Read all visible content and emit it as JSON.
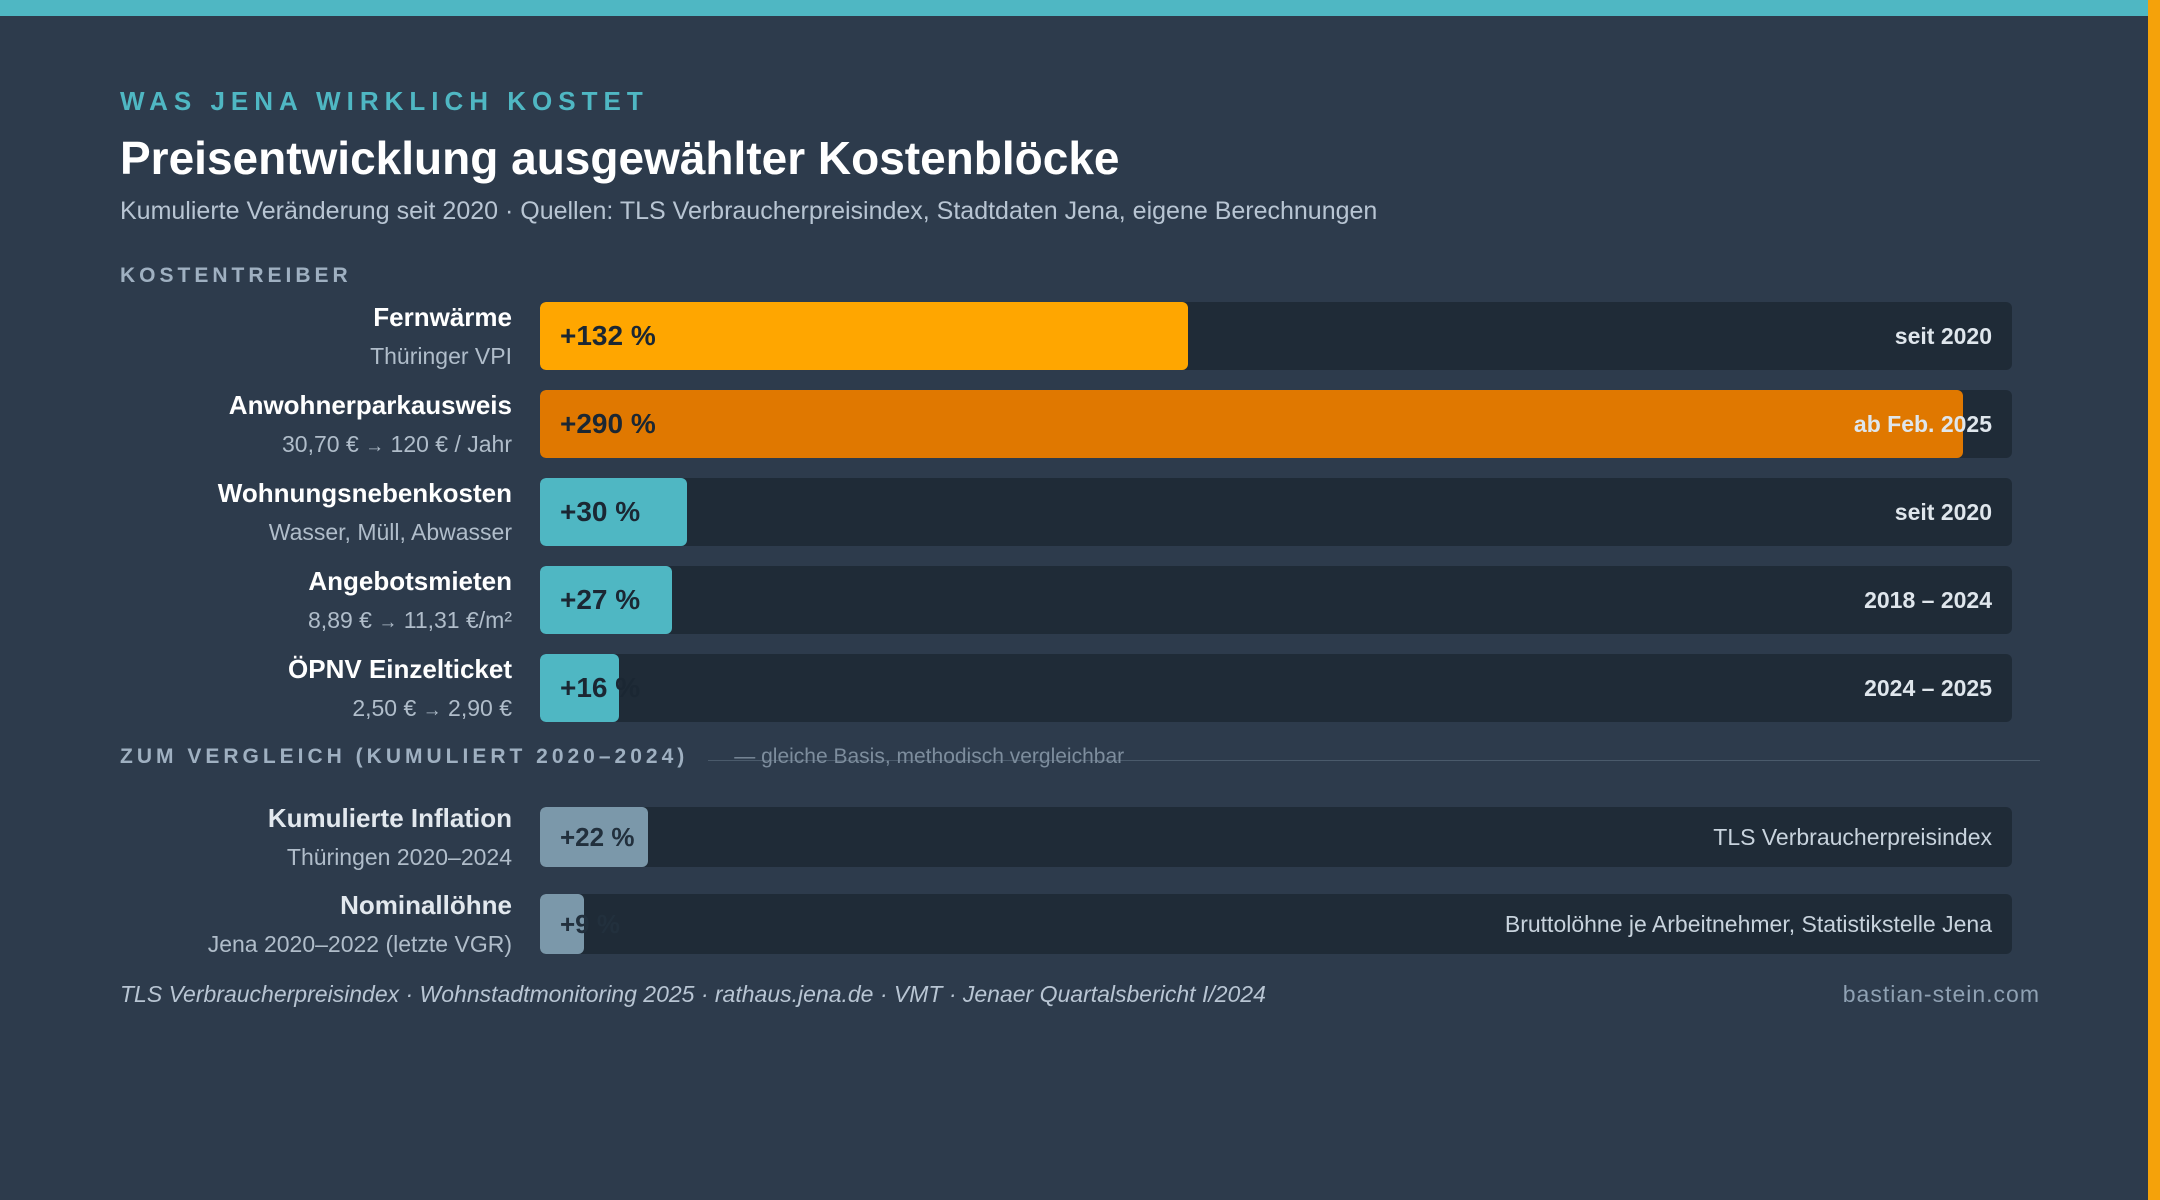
{
  "header": {
    "eyebrow": "WAS JENA WIRKLICH KOSTET",
    "title": "Preisentwicklung ausgewählter Kostenblöcke",
    "subtitle": "Kumulierte Veränderung seit 2020 · Quellen: TLS Verbraucherpreisindex, Stadtdaten Jena, eigene Berechnungen"
  },
  "colors": {
    "accent_teal": "#4fb7c3",
    "accent_orange": "#f5a20a",
    "fernwaerme": "#ffa600",
    "parkausweis": "#e07800",
    "teal_bar": "#4fb7c3",
    "comparison_bar": "#7b98aa"
  },
  "chart_data": {
    "type": "bar",
    "orientation": "horizontal",
    "title": "Preisentwicklung ausgewählter Kostenblöcke",
    "unit": "%",
    "xlim": [
      0,
      300
    ],
    "sections": [
      {
        "label": "KOSTENTREIBER",
        "bars": [
          {
            "name": "Fernwärme",
            "sub": "Thüringer VPI",
            "value": 132,
            "value_label": "+132 %",
            "note": "seit 2020"
          },
          {
            "name": "Anwohnerparkausweis",
            "sub": "30,70 € → 120 € / Jahr",
            "value": 290,
            "value_label": "+290 %",
            "note": "ab Feb. 2025"
          },
          {
            "name": "Wohnungsnebenkosten",
            "sub": "Wasser, Müll, Abwasser",
            "value": 30,
            "value_label": "+30 %",
            "note": "seit 2020"
          },
          {
            "name": "Angebotsmieten",
            "sub": "8,89 € → 11,31 €/m²",
            "value": 27,
            "value_label": "+27 %",
            "note": "2018 – 2024"
          },
          {
            "name": "ÖPNV Einzelticket",
            "sub": "2,50 € → 2,90 €",
            "value": 16,
            "value_label": "+16 %",
            "note": "2024 – 2025"
          }
        ]
      },
      {
        "label": "ZUM VERGLEICH (KUMULIERT 2020–2024)",
        "note": "— gleiche Basis, methodisch vergleichbar",
        "bars": [
          {
            "name": "Kumulierte Inflation",
            "sub": "Thüringen 2020–2024",
            "value": 22,
            "value_label": "+22 %",
            "note": "TLS Verbraucherpreisindex"
          },
          {
            "name": "Nominallöhne",
            "sub": "Jena 2020–2022 (letzte VGR)",
            "value": 9,
            "value_label": "+9 %",
            "note": "Bruttolöhne je Arbeitnehmer, Statistikstelle Jena"
          }
        ]
      }
    ]
  },
  "footer": {
    "sources": "TLS Verbraucherpreisindex · Wohnstadtmonitoring 2025 · rathaus.jena.de · VMT · Jenaer Quartalsbericht I/2024",
    "site": "bastian-stein.com"
  }
}
